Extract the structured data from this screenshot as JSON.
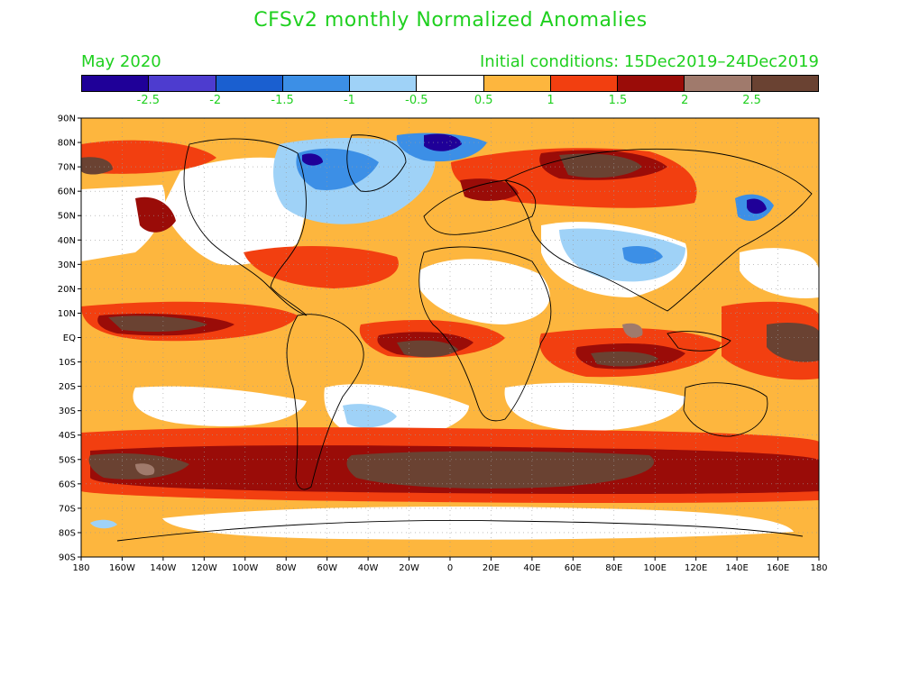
{
  "title": "CFSv2 monthly Normalized Anomalies",
  "forecast_month": "May 2020",
  "initial_conditions": "Initial conditions: 15Dec2019–24Dec2019",
  "legend": {
    "colors": [
      "#1f0098",
      "#4d3ccf",
      "#1a5fd0",
      "#3c8fe6",
      "#9fd2f7",
      "#ffffff",
      "#fdb63e",
      "#f23f10",
      "#9a0c08",
      "#a07a6c",
      "#6a4232"
    ],
    "labels": [
      "-2.5",
      "-2",
      "-1.5",
      "-1",
      "-0.5",
      "0.5",
      "1",
      "1.5",
      "2",
      "2.5"
    ]
  },
  "axes": {
    "lat_labels": [
      "90N",
      "80N",
      "70N",
      "60N",
      "50N",
      "40N",
      "30N",
      "20N",
      "10N",
      "EQ",
      "10S",
      "20S",
      "30S",
      "40S",
      "50S",
      "60S",
      "70S",
      "80S",
      "90S"
    ],
    "lon_labels": [
      "180",
      "160W",
      "140W",
      "120W",
      "100W",
      "80W",
      "60W",
      "40W",
      "20W",
      "0",
      "20E",
      "40E",
      "60E",
      "80E",
      "100E",
      "120E",
      "140E",
      "160E",
      "180"
    ]
  }
}
